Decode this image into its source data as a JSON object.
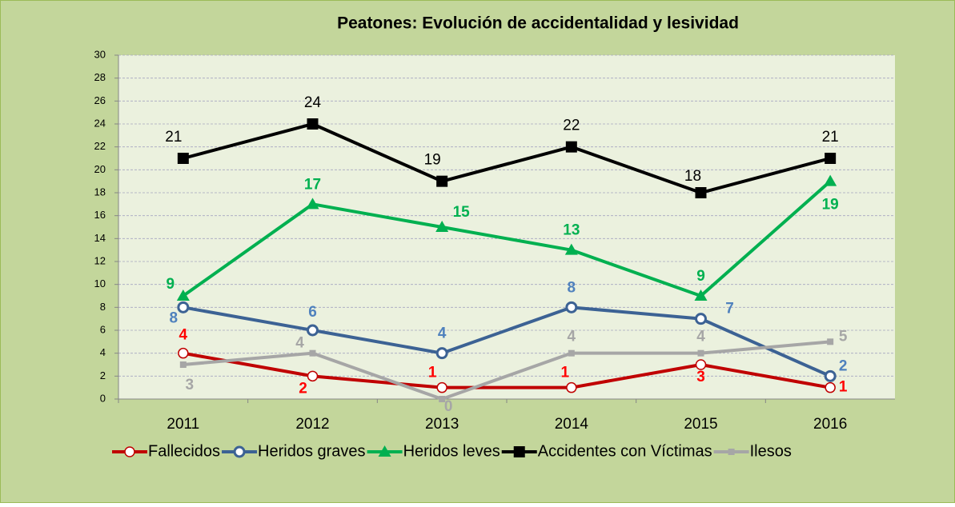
{
  "chart_data": {
    "type": "line",
    "title": "Peatones: Evolución de accidentalidad y lesividad",
    "categories": [
      "2011",
      "2012",
      "2013",
      "2014",
      "2015",
      "2016"
    ],
    "series": [
      {
        "name": "Fallecidos",
        "color": "#c00000",
        "label_color": "#ff0000",
        "marker": "circle-open",
        "values": [
          4,
          2,
          1,
          1,
          3,
          1
        ]
      },
      {
        "name": "Heridos graves",
        "color": "#3c6294",
        "label_color": "#4f81bd",
        "marker": "circle-open",
        "values": [
          8,
          6,
          4,
          8,
          7,
          2
        ]
      },
      {
        "name": "Heridos leves",
        "color": "#00b050",
        "label_color": "#00b050",
        "marker": "triangle",
        "values": [
          9,
          17,
          15,
          13,
          9,
          19
        ]
      },
      {
        "name": "Accidentes con Víctimas",
        "color": "#000000",
        "label_color": "#000000",
        "marker": "square",
        "values": [
          21,
          24,
          19,
          22,
          18,
          21
        ]
      },
      {
        "name": "Ilesos",
        "color": "#a6a6a6",
        "label_color": "#a6a6a6",
        "marker": "square-small",
        "values": [
          3,
          4,
          0,
          4,
          4,
          5
        ]
      }
    ],
    "ylim": [
      0,
      30
    ],
    "yticks": [
      0,
      2,
      4,
      6,
      8,
      10,
      12,
      14,
      16,
      18,
      20,
      22,
      24,
      26,
      28,
      30
    ],
    "grid": true,
    "legend": "bottom"
  }
}
